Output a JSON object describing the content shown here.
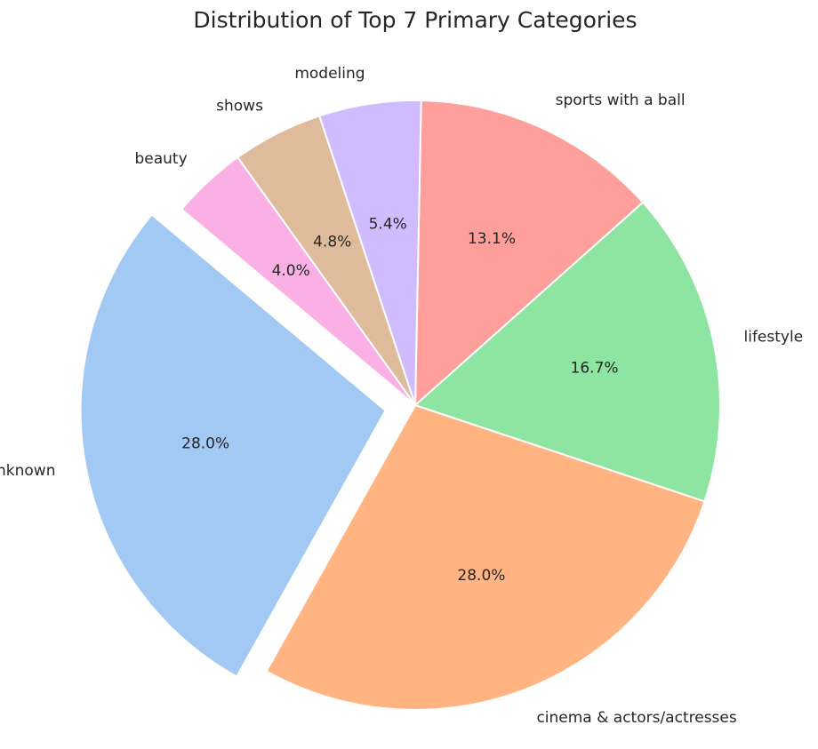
{
  "chart_data": {
    "type": "pie",
    "title": "Distribution of Top 7 Primary Categories",
    "slices": [
      {
        "label": "unknown",
        "value": 28.0,
        "pct_text": "28.0%",
        "color": "#a1c9f4",
        "explode": true
      },
      {
        "label": "cinema & actors/actresses",
        "value": 28.0,
        "pct_text": "28.0%",
        "color": "#ffb482",
        "explode": false
      },
      {
        "label": "lifestyle",
        "value": 16.7,
        "pct_text": "16.7%",
        "color": "#8de5a1",
        "explode": false
      },
      {
        "label": "sports with a ball",
        "value": 13.1,
        "pct_text": "13.1%",
        "color": "#ff9f9b",
        "explode": false
      },
      {
        "label": "modeling",
        "value": 5.4,
        "pct_text": "5.4%",
        "color": "#d0bbff",
        "explode": false
      },
      {
        "label": "shows",
        "value": 4.8,
        "pct_text": "4.8%",
        "color": "#debb9b",
        "explode": false
      },
      {
        "label": "beauty",
        "value": 4.0,
        "pct_text": "4.0%",
        "color": "#fab0e4",
        "explode": false
      }
    ],
    "direction": "counterclockwise",
    "start_angle_deg": 140
  }
}
